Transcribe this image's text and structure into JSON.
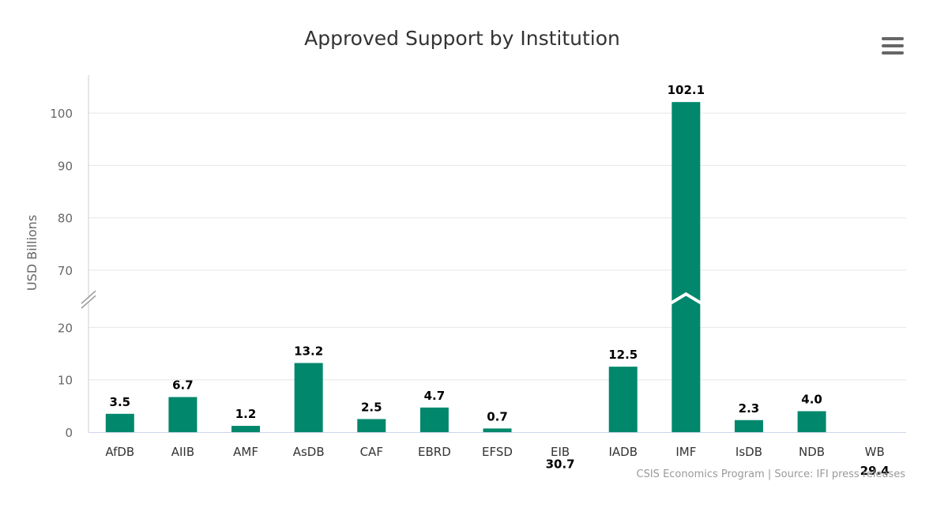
{
  "chart_data": {
    "type": "bar",
    "title": "Approved Support by Institution",
    "ylabel": "USD Billions",
    "xlabel": "",
    "categories": [
      "AfDB",
      "AIIB",
      "AMF",
      "AsDB",
      "CAF",
      "EBRD",
      "EFSD",
      "EIB",
      "IADB",
      "IMF",
      "IsDB",
      "NDB",
      "WB"
    ],
    "values": [
      3.5,
      6.7,
      1.2,
      13.2,
      2.5,
      4.7,
      0.7,
      30.7,
      12.5,
      102.1,
      2.3,
      4.0,
      29.4
    ],
    "data_labels": [
      "3.5",
      "6.7",
      "1.2",
      "13.2",
      "2.5",
      "4.7",
      "0.7",
      "30.7",
      "12.5",
      "102.1",
      "2.3",
      "4.0",
      "29.4"
    ],
    "y_axis_break": {
      "from": 25,
      "to": 65
    },
    "ylim": [
      0,
      105
    ],
    "yticks_lower": [
      0,
      10,
      20
    ],
    "yticks_upper": [
      70,
      80,
      90,
      100
    ],
    "grid": true,
    "legend": "none",
    "bar_color": "#00876c",
    "credits": "CSIS Economics Program | Source: IFI press releases"
  },
  "menu": {
    "icon": "hamburger-menu-icon"
  }
}
